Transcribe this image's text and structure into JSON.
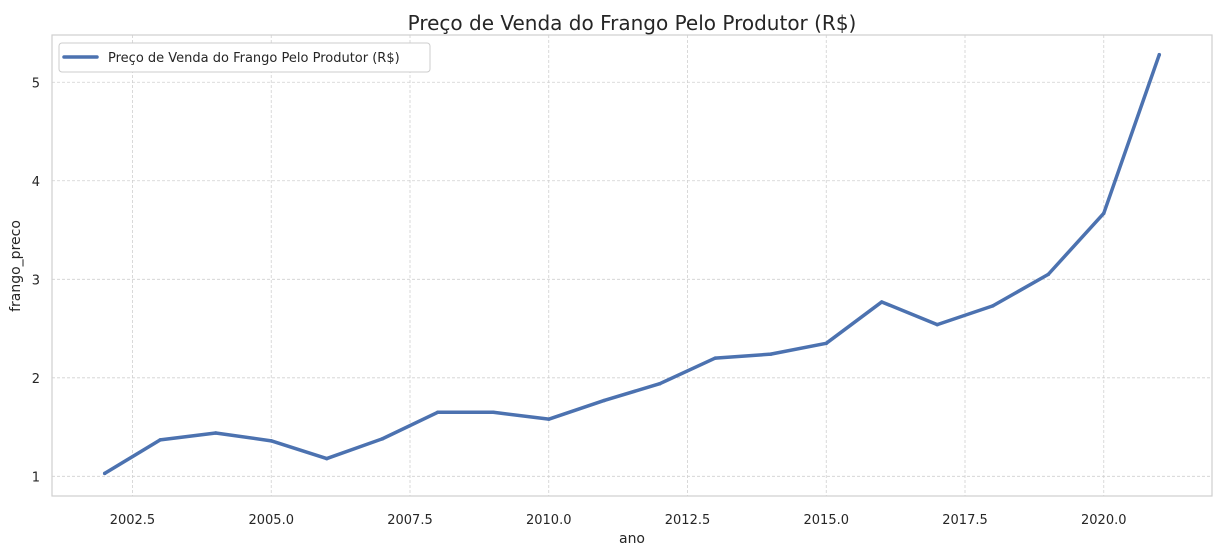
{
  "chart_data": {
    "type": "line",
    "title": "Preço de Venda do Frango Pelo Produtor (R$)",
    "xlabel": "ano",
    "ylabel": "frango_preco",
    "xlim": [
      2001.05,
      2021.95
    ],
    "ylim": [
      0.8,
      5.48
    ],
    "x_ticks": [
      2002.5,
      2005.0,
      2007.5,
      2010.0,
      2012.5,
      2015.0,
      2017.5,
      2020.0
    ],
    "x_tick_labels": [
      "2002.5",
      "2005.0",
      "2007.5",
      "2010.0",
      "2012.5",
      "2015.0",
      "2017.5",
      "2020.0"
    ],
    "y_ticks": [
      1,
      2,
      3,
      4,
      5
    ],
    "y_tick_labels": [
      "1",
      "2",
      "3",
      "4",
      "5"
    ],
    "grid": true,
    "legend_position": "top-left",
    "series": [
      {
        "name": "Preço de Venda do Frango Pelo Produtor (R$)",
        "color": "#4c72b0",
        "x": [
          2002,
          2003,
          2004,
          2005,
          2006,
          2007,
          2008,
          2009,
          2010,
          2011,
          2012,
          2013,
          2014,
          2015,
          2016,
          2017,
          2018,
          2019,
          2020,
          2021
        ],
        "y": [
          1.03,
          1.37,
          1.44,
          1.36,
          1.18,
          1.38,
          1.65,
          1.65,
          1.58,
          1.77,
          1.94,
          2.2,
          2.24,
          2.35,
          2.77,
          2.54,
          2.73,
          3.05,
          3.67,
          5.28
        ]
      }
    ]
  }
}
